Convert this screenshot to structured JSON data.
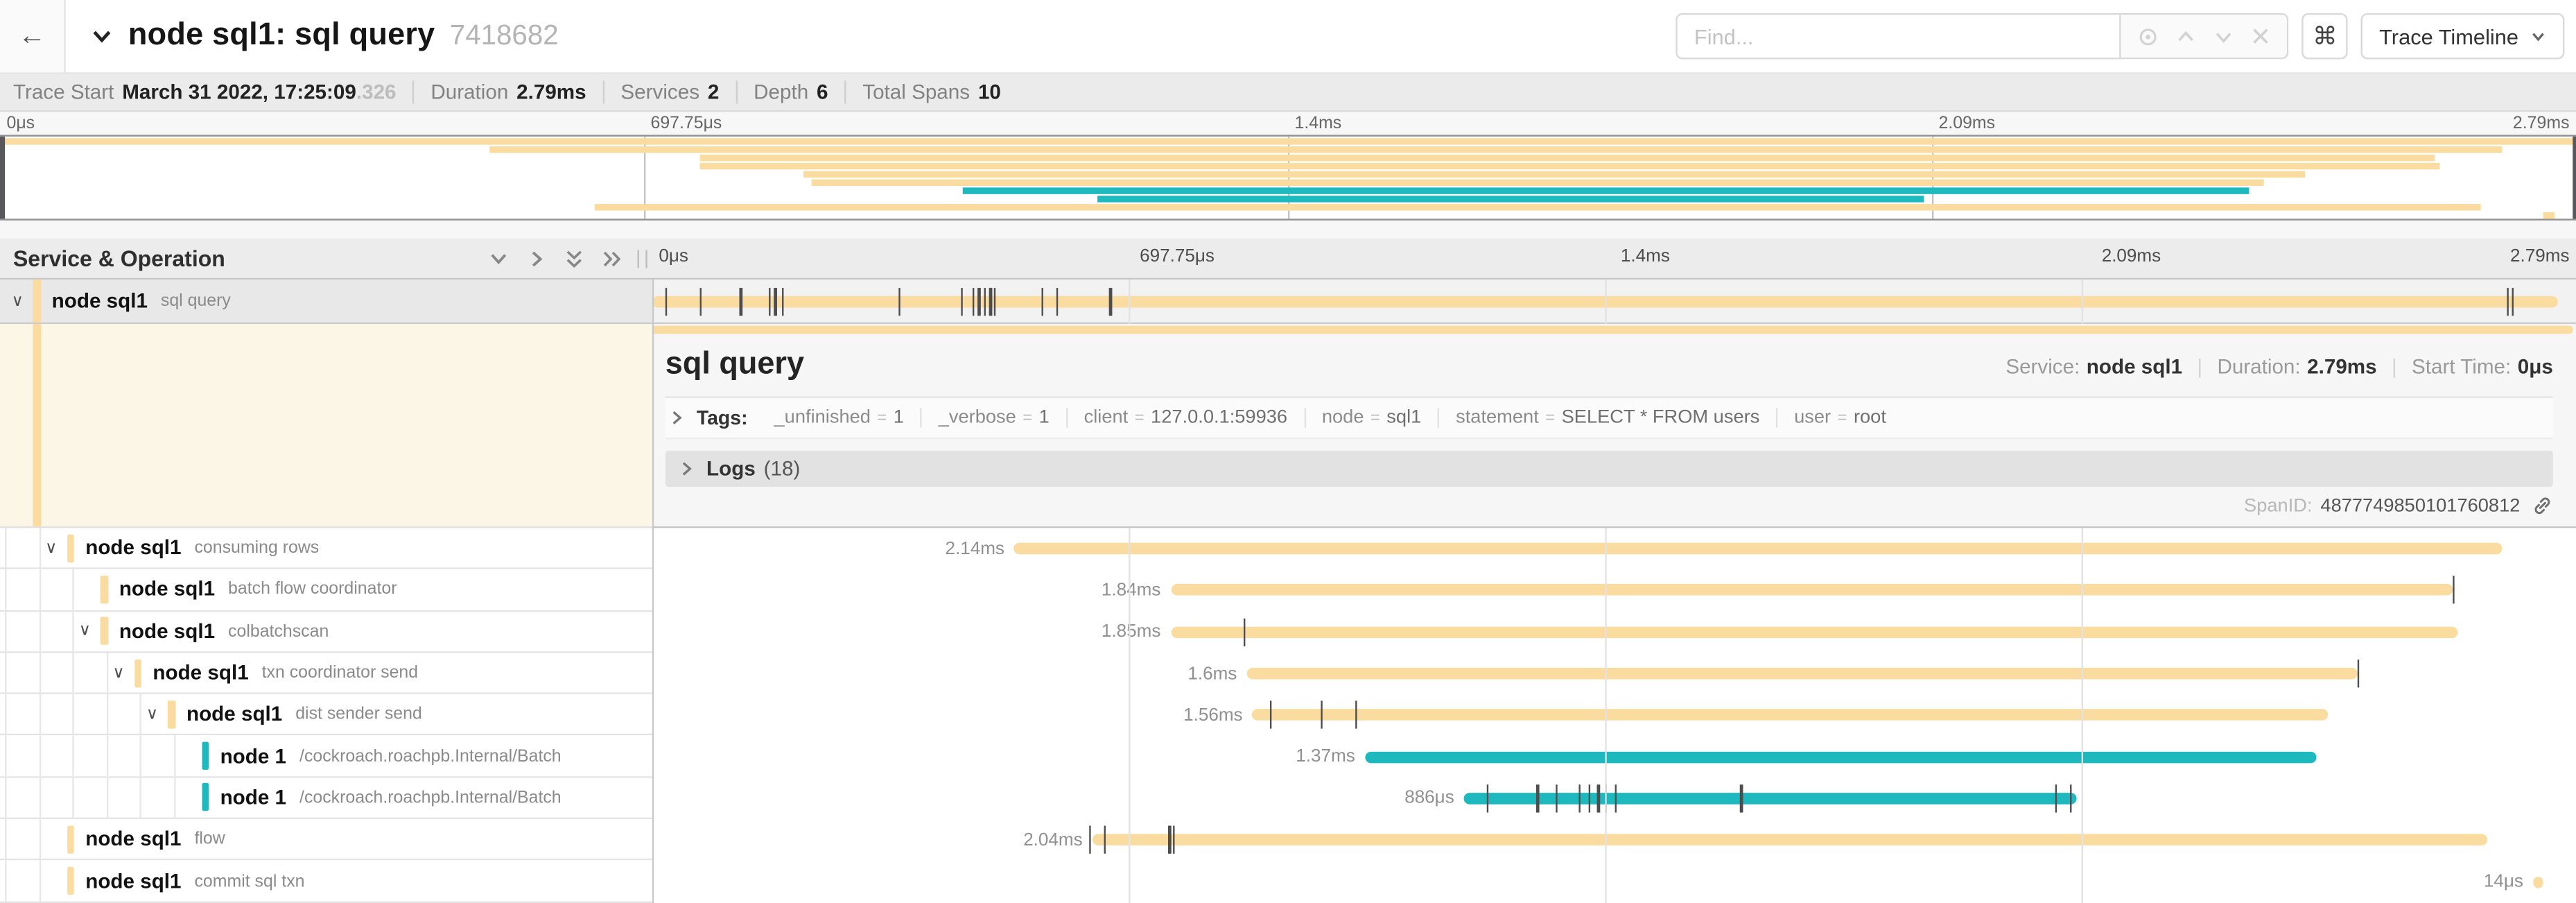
{
  "header": {
    "back_label": "←",
    "title": "node sql1: sql query",
    "trace_id": "7418682",
    "find_placeholder": "Find...",
    "shortcut_key": "⌘",
    "view_selector": "Trace Timeline"
  },
  "summary": {
    "items": [
      {
        "label": "Trace Start",
        "value": "March 31 2022, 17:25:09",
        "muted": ".326"
      },
      {
        "label": "Duration",
        "value": "2.79ms"
      },
      {
        "label": "Services",
        "value": "2"
      },
      {
        "label": "Depth",
        "value": "6"
      },
      {
        "label": "Total Spans",
        "value": "10"
      }
    ]
  },
  "minimap": {
    "ticks": [
      "0μs",
      "697.75μs",
      "1.4ms",
      "2.09ms",
      "2.79ms"
    ]
  },
  "timeline": {
    "left_header": "Service & Operation",
    "ticks": [
      "0μs",
      "697.75μs",
      "1.4ms",
      "2.09ms",
      "2.79ms"
    ]
  },
  "colors": {
    "tan": "#FADCA0",
    "teal": "#1EB9BE"
  },
  "spans": [
    {
      "service": "node sql1",
      "operation": "sql query",
      "depth": 0,
      "expandable": true,
      "color": "tan",
      "duration": "",
      "start_pct": 0,
      "width_pct": 100,
      "selected": true,
      "ticks": [
        0.7,
        2.5,
        4.6,
        6.1,
        6.4,
        6.8,
        12.9,
        16.2,
        16.8,
        17.1,
        17.4,
        17.7,
        17.9,
        20.4,
        21.2,
        24.0,
        97.3,
        97.6
      ]
    },
    {
      "service": "node sql1",
      "operation": "consuming rows",
      "depth": 1,
      "expandable": true,
      "color": "tan",
      "duration": "2.14ms",
      "start_pct": 19.0,
      "width_pct": 78.1,
      "ticks": []
    },
    {
      "service": "node sql1",
      "operation": "batch flow coordinator",
      "depth": 2,
      "expandable": false,
      "color": "tan",
      "duration": "1.84ms",
      "start_pct": 27.2,
      "width_pct": 67.3,
      "ticks": [
        94.5
      ]
    },
    {
      "service": "node sql1",
      "operation": "colbatchscan",
      "depth": 2,
      "expandable": true,
      "color": "tan",
      "duration": "1.85ms",
      "start_pct": 27.2,
      "width_pct": 67.5,
      "ticks": [
        31.0
      ]
    },
    {
      "service": "node sql1",
      "operation": "txn coordinator send",
      "depth": 3,
      "expandable": true,
      "color": "tan",
      "duration": "1.6ms",
      "start_pct": 31.2,
      "width_pct": 58.3,
      "ticks": [
        89.5
      ]
    },
    {
      "service": "node sql1",
      "operation": "dist sender send",
      "depth": 4,
      "expandable": true,
      "color": "tan",
      "duration": "1.56ms",
      "start_pct": 31.5,
      "width_pct": 56.4,
      "ticks": [
        32.4,
        35.1,
        36.9
      ]
    },
    {
      "service": "node 1",
      "operation": "/cockroach.roachpb.Internal/Batch",
      "depth": 5,
      "expandable": false,
      "color": "teal",
      "duration": "1.37ms",
      "start_pct": 37.4,
      "width_pct": 49.9,
      "ticks": []
    },
    {
      "service": "node 1",
      "operation": "/cockroach.roachpb.Internal/Batch",
      "depth": 5,
      "expandable": false,
      "color": "teal",
      "duration": "886μs",
      "start_pct": 42.6,
      "width_pct": 32.1,
      "ticks": [
        43.8,
        46.4,
        47.4,
        48.6,
        49.1,
        49.6,
        50.0,
        50.5,
        57.1,
        73.6,
        74.4
      ]
    },
    {
      "service": "node sql1",
      "operation": "flow",
      "depth": 1,
      "expandable": false,
      "color": "tan",
      "duration": "2.04ms",
      "start_pct": 23.1,
      "width_pct": 73.2,
      "ticks": [
        22.9,
        23.7,
        27.1,
        27.3
      ]
    },
    {
      "service": "node sql1",
      "operation": "commit sql txn",
      "depth": 1,
      "expandable": false,
      "color": "tan",
      "duration": "14μs",
      "start_pct": 98.7,
      "width_pct": 0.5,
      "ticks": []
    }
  ],
  "detail": {
    "title": "sql query",
    "service_label": "Service:",
    "service": "node sql1",
    "duration_label": "Duration:",
    "duration": "2.79ms",
    "start_label": "Start Time:",
    "start": "0μs",
    "tags_label": "Tags:",
    "tags": [
      {
        "key": "_unfinished",
        "value": "1"
      },
      {
        "key": "_verbose",
        "value": "1"
      },
      {
        "key": "client",
        "value": "127.0.0.1:59936"
      },
      {
        "key": "node",
        "value": "sql1"
      },
      {
        "key": "statement",
        "value": "SELECT * FROM users"
      },
      {
        "key": "user",
        "value": "root"
      }
    ],
    "logs_label": "Logs",
    "logs_count": "(18)",
    "span_id_label": "SpanID:",
    "span_id": "4877749850101760812"
  }
}
